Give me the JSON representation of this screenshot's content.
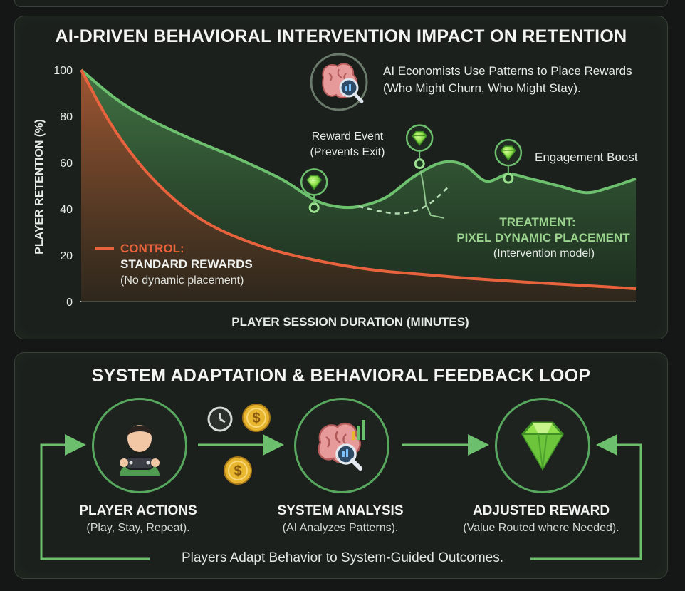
{
  "chart_data": {
    "type": "line",
    "title": "AI-DRIVEN BEHAVIORAL INTERVENTION IMPACT ON RETENTION",
    "xlabel": "PLAYER SESSION DURATION (MINUTES)",
    "ylabel": "PLAYER RETENTION (%)",
    "ylim": [
      0,
      100
    ],
    "xlim": [
      0,
      100
    ],
    "yticks": [
      0,
      20,
      40,
      60,
      80,
      100
    ],
    "series": [
      {
        "name": "Treatment",
        "color": "#5fae63",
        "x": [
          0,
          6,
          12,
          20,
          28,
          36,
          42,
          46,
          50,
          55,
          60,
          65,
          69,
          73,
          77,
          81,
          86,
          91,
          95,
          100
        ],
        "values": [
          100,
          88,
          79,
          70,
          62,
          53,
          44,
          41,
          41,
          45,
          54,
          60,
          59,
          52,
          55,
          53,
          50,
          47,
          49,
          53
        ]
      },
      {
        "name": "Control",
        "color": "#e46a45",
        "x": [
          0,
          5,
          10,
          15,
          20,
          25,
          30,
          35,
          40,
          45,
          50,
          55,
          60,
          65,
          70,
          75,
          80,
          85,
          90,
          95,
          100
        ],
        "values": [
          100,
          78,
          61,
          48,
          38,
          31,
          26,
          22,
          19,
          16.5,
          14.5,
          13,
          12,
          11,
          10,
          9.2,
          8.4,
          7.7,
          7,
          6.3,
          5.5
        ]
      }
    ],
    "counterfactual": {
      "x": [
        50,
        57,
        62,
        66
      ],
      "values": [
        41,
        38,
        41,
        49
      ]
    },
    "reward_markers": [
      {
        "x": 42,
        "y": 40.5
      },
      {
        "x": 61,
        "y": 59.5
      },
      {
        "x": 77,
        "y": 53.2
      }
    ],
    "annotations": {
      "ai_note_line1": "AI Economists Use Patterns to Place Rewards",
      "ai_note_line2": "(Who Might Churn, Who Might Stay).",
      "reward_event_line1": "Reward Event",
      "reward_event_line2": "(Prevents Exit)",
      "engagement_boost": "Engagement Boost",
      "treatment_line1": "TREATMENT:",
      "treatment_line2": "PIXEL DYNAMIC PLACEMENT",
      "treatment_line3": "(Intervention model)",
      "control_line1": "CONTROL:",
      "control_line2": "STANDARD REWARDS",
      "control_line3": "(No dynamic placement)"
    }
  },
  "loop": {
    "title": "SYSTEM ADAPTATION & BEHAVIORAL FEEDBACK LOOP",
    "nodes": [
      {
        "label": "PLAYER ACTIONS",
        "sub": "(Play, Stay, Repeat)."
      },
      {
        "label": "SYSTEM ANALYSIS",
        "sub": "(AI Analyzes Patterns)."
      },
      {
        "label": "ADJUSTED REWARD",
        "sub": "(Value Routed where Needed)."
      }
    ],
    "coin_symbol": "$",
    "caption": "Players Adapt Behavior to System-Guided Outcomes."
  },
  "colors": {
    "accent_green": "#5fae63",
    "control_orange": "#e46a45",
    "gem_green": "#8fe04a",
    "coin_gold": "#e8b52f"
  }
}
